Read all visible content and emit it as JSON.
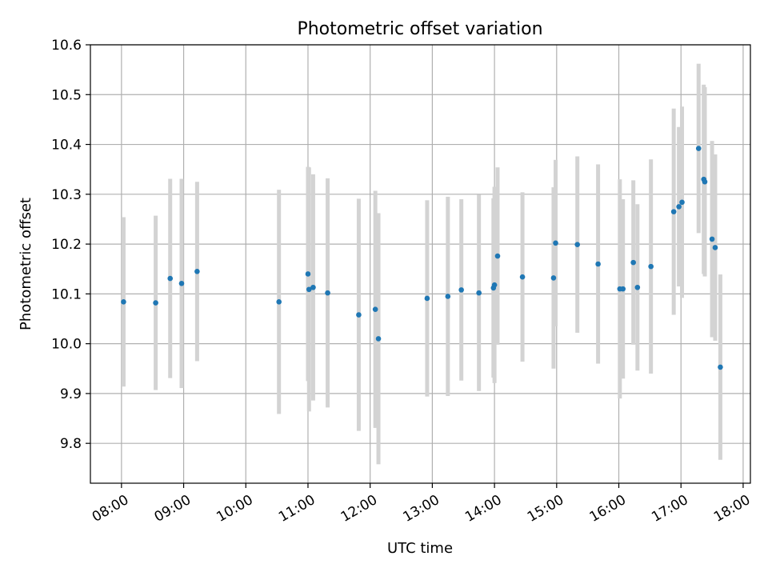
{
  "chart_data": {
    "type": "scatter",
    "title": "Photometric offset variation",
    "xlabel": "UTC time",
    "ylabel": "Photometric offset",
    "xlim": [
      "07:30",
      "18:07"
    ],
    "ylim": [
      9.72,
      10.6
    ],
    "x_ticks": [
      "08:00",
      "09:00",
      "10:00",
      "11:00",
      "12:00",
      "13:00",
      "14:00",
      "15:00",
      "16:00",
      "17:00",
      "18:00"
    ],
    "y_ticks": [
      "9.8",
      "9.9",
      "10.0",
      "10.1",
      "10.2",
      "10.3",
      "10.4",
      "10.5",
      "10.6"
    ],
    "grid": true,
    "colors": {
      "marker": "#1f77b4",
      "errorbar": "#d3d3d3",
      "grid": "#b0b0b0",
      "axes": "#000000"
    },
    "series": [
      {
        "points": [
          {
            "x": "08:02",
            "y": 10.084,
            "err": 0.17
          },
          {
            "x": "08:33",
            "y": 10.082,
            "err": 0.175
          },
          {
            "x": "08:47",
            "y": 10.131,
            "err": 0.2
          },
          {
            "x": "08:58",
            "y": 10.121,
            "err": 0.21
          },
          {
            "x": "09:13",
            "y": 10.145,
            "err": 0.18
          },
          {
            "x": "10:32",
            "y": 10.084,
            "err": 0.225
          },
          {
            "x": "11:00",
            "y": 10.14,
            "err": 0.215
          },
          {
            "x": "11:01",
            "y": 10.109,
            "err": 0.245
          },
          {
            "x": "11:05",
            "y": 10.113,
            "err": 0.227
          },
          {
            "x": "11:19",
            "y": 10.102,
            "err": 0.23
          },
          {
            "x": "11:49",
            "y": 10.058,
            "err": 0.233
          },
          {
            "x": "12:05",
            "y": 10.069,
            "err": 0.238
          },
          {
            "x": "12:08",
            "y": 10.01,
            "err": 0.252
          },
          {
            "x": "12:55",
            "y": 10.091,
            "err": 0.197
          },
          {
            "x": "13:15",
            "y": 10.095,
            "err": 0.2
          },
          {
            "x": "13:28",
            "y": 10.108,
            "err": 0.182
          },
          {
            "x": "13:45",
            "y": 10.102,
            "err": 0.197
          },
          {
            "x": "13:59",
            "y": 10.112,
            "err": 0.18
          },
          {
            "x": "14:00",
            "y": 10.118,
            "err": 0.197
          },
          {
            "x": "14:03",
            "y": 10.176,
            "err": 0.178
          },
          {
            "x": "14:27",
            "y": 10.134,
            "err": 0.17
          },
          {
            "x": "14:57",
            "y": 10.132,
            "err": 0.182
          },
          {
            "x": "14:59",
            "y": 10.202,
            "err": 0.167
          },
          {
            "x": "15:20",
            "y": 10.199,
            "err": 0.177
          },
          {
            "x": "15:40",
            "y": 10.16,
            "err": 0.2
          },
          {
            "x": "16:01",
            "y": 10.11,
            "err": 0.22
          },
          {
            "x": "16:04",
            "y": 10.11,
            "err": 0.18
          },
          {
            "x": "16:14",
            "y": 10.163,
            "err": 0.165
          },
          {
            "x": "16:18",
            "y": 10.113,
            "err": 0.167
          },
          {
            "x": "16:31",
            "y": 10.155,
            "err": 0.215
          },
          {
            "x": "16:53",
            "y": 10.265,
            "err": 0.207
          },
          {
            "x": "16:58",
            "y": 10.275,
            "err": 0.16
          },
          {
            "x": "17:01",
            "y": 10.284,
            "err": 0.192
          },
          {
            "x": "17:17",
            "y": 10.392,
            "err": 0.17
          },
          {
            "x": "17:22",
            "y": 10.33,
            "err": 0.19
          },
          {
            "x": "17:23",
            "y": 10.325,
            "err": 0.19
          },
          {
            "x": "17:30",
            "y": 10.21,
            "err": 0.197
          },
          {
            "x": "17:33",
            "y": 10.193,
            "err": 0.187
          },
          {
            "x": "17:38",
            "y": 9.953,
            "err": 0.186
          }
        ]
      }
    ]
  }
}
